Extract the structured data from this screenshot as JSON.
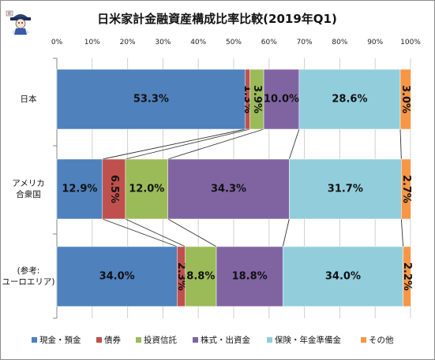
{
  "chart_data": {
    "type": "bar",
    "orientation": "horizontal-stacked-100",
    "title": "日米家計金融資産構成比率比較(2019年Q1)",
    "x_ticks": [
      "0%",
      "10%",
      "20%",
      "30%",
      "40%",
      "50%",
      "60%",
      "70%",
      "80%",
      "90%",
      "100%"
    ],
    "xlim": [
      0,
      100
    ],
    "grid": true,
    "legend_position": "bottom",
    "categories": [
      [
        "日本"
      ],
      [
        "アメリカ",
        "合衆国"
      ],
      [
        "(参考:",
        "ユーロエリア)"
      ]
    ],
    "series": [
      {
        "name": "現金・預金",
        "color": "#4f81bd",
        "values": [
          53.3,
          12.9,
          34.0
        ],
        "labels": [
          "53.3%",
          "12.9%",
          "34.0%"
        ]
      },
      {
        "name": "債券",
        "color": "#c0504d",
        "values": [
          1.3,
          6.5,
          2.3
        ],
        "labels": [
          "1.3%",
          "6.5%",
          "2.3%"
        ]
      },
      {
        "name": "投資信託",
        "color": "#9bbb59",
        "values": [
          3.9,
          12.0,
          8.8
        ],
        "labels": [
          "3.9%",
          "12.0%",
          "8.8%"
        ]
      },
      {
        "name": "株式・出資金",
        "color": "#8064a2",
        "values": [
          10.0,
          34.3,
          18.8
        ],
        "labels": [
          "10.0%",
          "34.3%",
          "18.8%"
        ]
      },
      {
        "name": "保険・年金準備金",
        "color": "#92cddc",
        "values": [
          28.6,
          31.7,
          34.0
        ],
        "labels": [
          "28.6%",
          "31.7%",
          "34.0%"
        ]
      },
      {
        "name": "その他",
        "color": "#f79646",
        "values": [
          3.0,
          2.7,
          2.2
        ],
        "labels": [
          "3.0%",
          "2.7%",
          "2.2%"
        ]
      }
    ]
  }
}
